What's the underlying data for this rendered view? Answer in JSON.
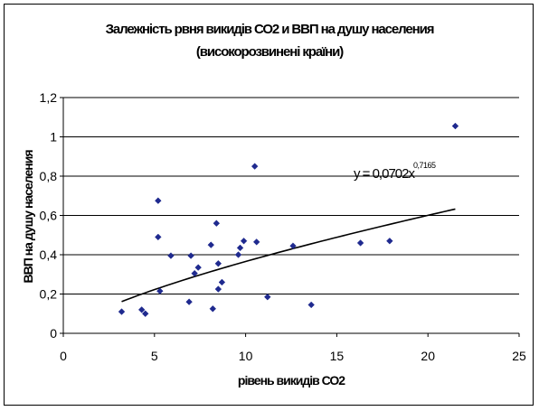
{
  "chart_data": {
    "type": "scatter",
    "title": "Залежність рвня викидів СО2 и ВВП на душу населения",
    "subtitle": "(високорозвинені країни)",
    "xlabel": "рівень викидів СО2",
    "ylabel": "ВВП на душу населения",
    "xlim": [
      0,
      25
    ],
    "ylim": [
      0,
      1.2
    ],
    "x_ticks": [
      "0",
      "5",
      "10",
      "15",
      "20",
      "25"
    ],
    "y_ticks": [
      "0",
      "0,2",
      "0,4",
      "0,6",
      "0,8",
      "1",
      "1,2"
    ],
    "grid": "horizontal",
    "marker_color": "#1f2a8f",
    "trendline": {
      "label": "y = 0,0702x",
      "exponent": "0,7165",
      "coefficient": 0.0702,
      "power": 0.7165,
      "x_range": [
        3.2,
        21.5
      ],
      "color": "#000000"
    },
    "points": [
      {
        "x": 3.2,
        "y": 0.11
      },
      {
        "x": 4.3,
        "y": 0.12
      },
      {
        "x": 4.5,
        "y": 0.1
      },
      {
        "x": 5.2,
        "y": 0.675
      },
      {
        "x": 5.2,
        "y": 0.49
      },
      {
        "x": 5.3,
        "y": 0.215
      },
      {
        "x": 5.9,
        "y": 0.395
      },
      {
        "x": 6.9,
        "y": 0.16
      },
      {
        "x": 7.0,
        "y": 0.395
      },
      {
        "x": 7.2,
        "y": 0.305
      },
      {
        "x": 7.4,
        "y": 0.335
      },
      {
        "x": 8.1,
        "y": 0.45
      },
      {
        "x": 8.2,
        "y": 0.125
      },
      {
        "x": 8.4,
        "y": 0.56
      },
      {
        "x": 8.5,
        "y": 0.225
      },
      {
        "x": 8.5,
        "y": 0.355
      },
      {
        "x": 8.7,
        "y": 0.26
      },
      {
        "x": 9.6,
        "y": 0.4
      },
      {
        "x": 9.7,
        "y": 0.435
      },
      {
        "x": 9.9,
        "y": 0.47
      },
      {
        "x": 10.5,
        "y": 0.85
      },
      {
        "x": 10.6,
        "y": 0.465
      },
      {
        "x": 11.2,
        "y": 0.185
      },
      {
        "x": 12.6,
        "y": 0.445
      },
      {
        "x": 13.6,
        "y": 0.145
      },
      {
        "x": 16.3,
        "y": 0.46
      },
      {
        "x": 17.9,
        "y": 0.47
      },
      {
        "x": 21.5,
        "y": 1.055
      }
    ]
  }
}
